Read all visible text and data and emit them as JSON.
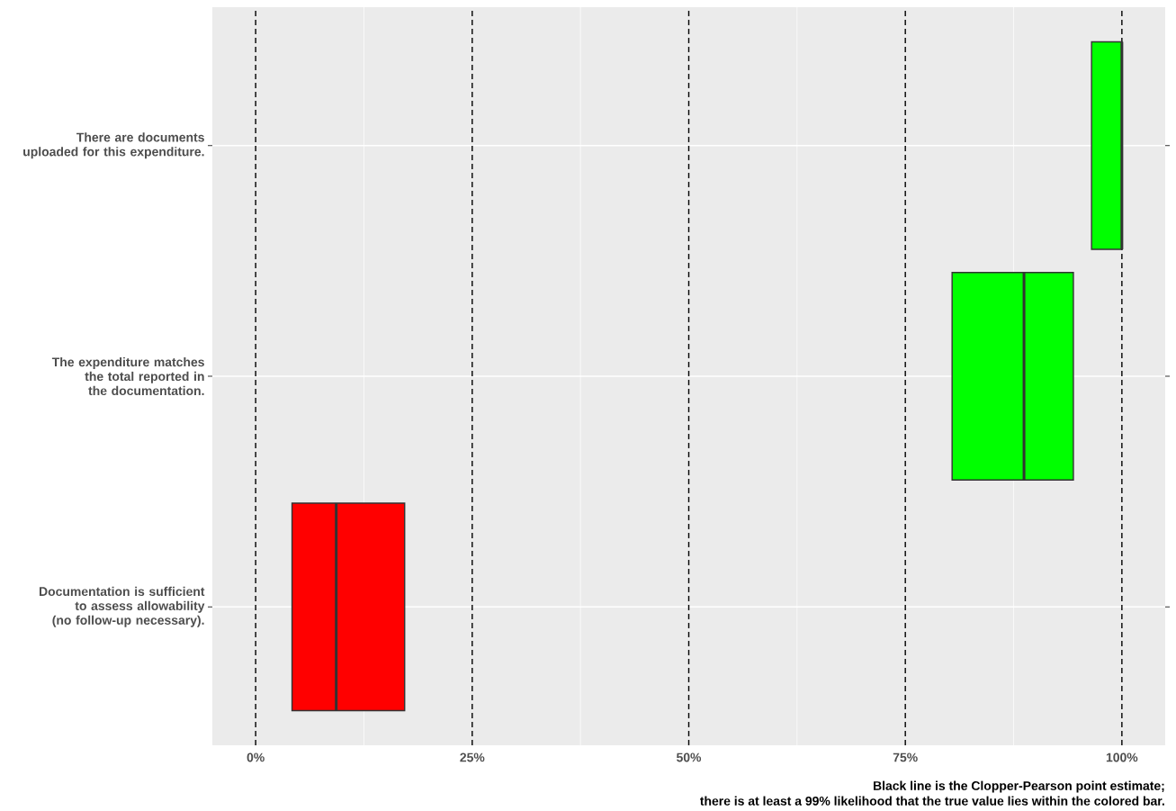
{
  "chart_data": {
    "type": "box",
    "orientation": "horizontal",
    "categories": [
      "There are documents uploaded for this expenditure.",
      "The expenditure matches the total reported in the documentation.",
      "Documentation is sufficient to assess allowability (no follow-up necessary)."
    ],
    "boxes": [
      {
        "low": 96.5,
        "q1": 96.5,
        "median": 100,
        "q3": 100,
        "high": 100
      },
      {
        "low": 80.4,
        "q1": 80.4,
        "median": 88.7,
        "q3": 94.4,
        "high": 94.4
      },
      {
        "low": 4.2,
        "q1": 4.2,
        "median": 9.3,
        "q3": 17.2,
        "high": 17.2
      }
    ],
    "colors": [
      "#00ff00",
      "#00ff00",
      "#ff0000"
    ],
    "xlim": [
      -5,
      105
    ],
    "xticks": [
      {
        "value": 0,
        "label": "0%"
      },
      {
        "value": 25,
        "label": "25%"
      },
      {
        "value": 50,
        "label": "50%"
      },
      {
        "value": 75,
        "label": "75%"
      },
      {
        "value": 100,
        "label": "100%"
      }
    ],
    "grid": true,
    "ref_lines": [
      {
        "axis": "x",
        "value": 0,
        "color": "#000000",
        "line_style": "dashed"
      },
      {
        "axis": "x",
        "value": 25,
        "color": "#000000",
        "line_style": "dashed"
      },
      {
        "axis": "x",
        "value": 50,
        "color": "#000000",
        "line_style": "dashed"
      },
      {
        "axis": "x",
        "value": 75,
        "color": "#000000",
        "line_style": "dashed"
      },
      {
        "axis": "x",
        "value": 100,
        "color": "#000000",
        "line_style": "dashed"
      }
    ],
    "annotations": [
      "Black line is the Clopper-Pearson point estimate;",
      "there is at least a 99% likelihood that the true value lies within the colored bar."
    ]
  }
}
